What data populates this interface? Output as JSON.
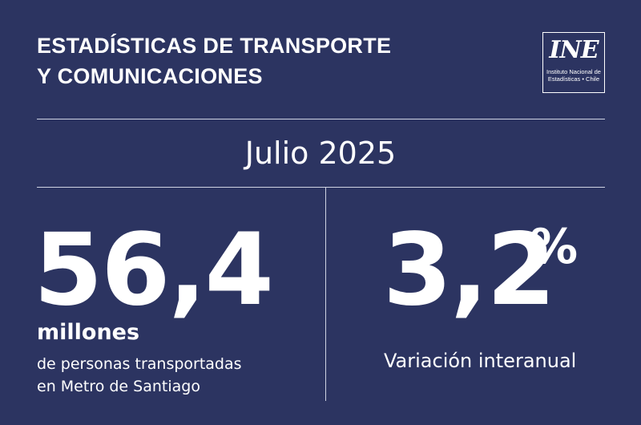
{
  "header": {
    "title_line1": "ESTADÍSTICAS DE TRANSPORTE",
    "title_line2": "Y COMUNICACIONES"
  },
  "logo": {
    "mark": "INE",
    "text_line1": "Instituto Nacional de",
    "text_line2": "Estadísticas • Chile"
  },
  "period": "Julio 2025",
  "left_stat": {
    "value": "56,4",
    "unit": "millones",
    "desc_line1": "de personas transportadas",
    "desc_line2": "en Metro de Santiago"
  },
  "right_stat": {
    "value": "3,2",
    "sign": "%",
    "label": "Variación interanual"
  },
  "colors": {
    "background": "#2c3461",
    "text": "#ffffff",
    "rule": "#cfd3e3"
  }
}
